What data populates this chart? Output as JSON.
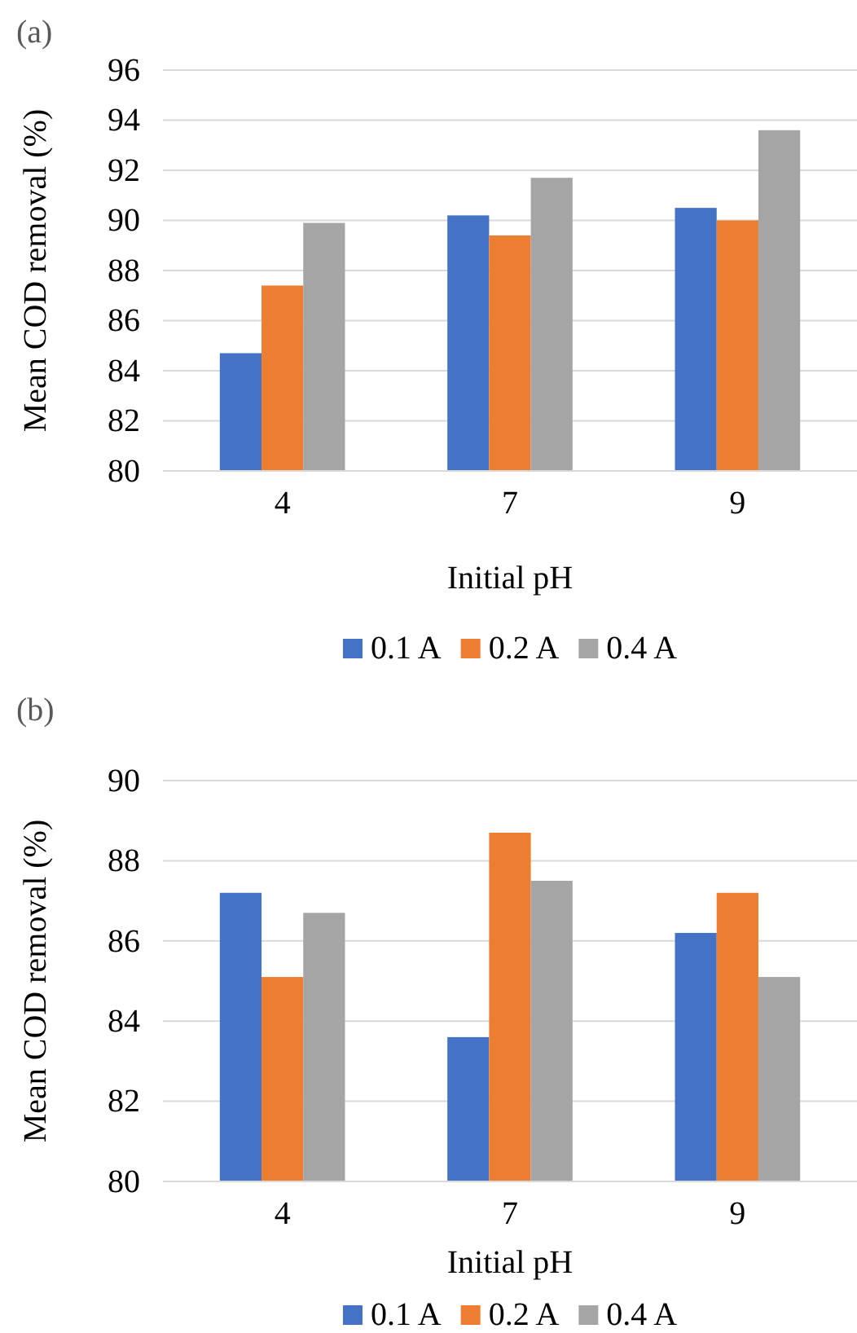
{
  "chart_data": [
    {
      "type": "bar",
      "title": "(a)",
      "xlabel": "Initial pH",
      "ylabel": "Mean COD removal (%)",
      "categories": [
        "4",
        "7",
        "9"
      ],
      "series": [
        {
          "name": "0.1 A",
          "color": "#4472c4",
          "values": [
            84.7,
            90.2,
            90.5
          ]
        },
        {
          "name": "0.2 A",
          "color": "#ed7d31",
          "values": [
            87.4,
            89.4,
            90.0
          ]
        },
        {
          "name": "0.4 A",
          "color": "#a5a5a5",
          "values": [
            89.9,
            91.7,
            93.6
          ]
        }
      ],
      "ylim": [
        80,
        96
      ],
      "yticks": [
        80,
        82,
        84,
        86,
        88,
        90,
        92,
        94,
        96
      ],
      "grid": "y",
      "legend": "bottom"
    },
    {
      "type": "bar",
      "title": "(b)",
      "xlabel": "Initial pH",
      "ylabel": "Mean COD removal (%)",
      "categories": [
        "4",
        "7",
        "9"
      ],
      "series": [
        {
          "name": "0.1 A",
          "color": "#4472c4",
          "values": [
            87.2,
            83.6,
            86.2
          ]
        },
        {
          "name": "0.2 A",
          "color": "#ed7d31",
          "values": [
            85.1,
            88.7,
            87.2
          ]
        },
        {
          "name": "0.4 A",
          "color": "#a5a5a5",
          "values": [
            86.7,
            87.5,
            85.1
          ]
        }
      ],
      "ylim": [
        80,
        90
      ],
      "yticks": [
        80,
        82,
        84,
        86,
        88,
        90
      ],
      "grid": "y",
      "legend": "bottom"
    }
  ]
}
